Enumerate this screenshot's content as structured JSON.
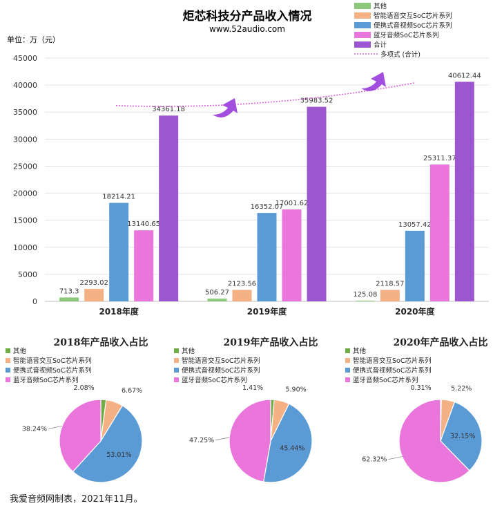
{
  "title": "炬芯科技分产品收入情况",
  "subtitle": "www.52audio.com",
  "unit_label": "单位：万（元）",
  "footer": "我爱音频网制表，2021年11月。",
  "colors": {
    "其他": "#8dc77a",
    "智能语音交互SoC芯片系列": "#f4b183",
    "便携式音视频SoC芯片系列": "#5b9bd5",
    "蓝牙音频SoC芯片系列": "#ea76dc",
    "合计": "#9c56cf",
    "trend": "#d966d9"
  },
  "chart_data": [
    {
      "type": "bar",
      "categories": [
        "2018年度",
        "2019年度",
        "2020年度"
      ],
      "series": [
        {
          "name": "其他",
          "values": [
            713.3,
            506.27,
            125.08
          ]
        },
        {
          "name": "智能语音交互SoC芯片系列",
          "values": [
            2293.02,
            2123.56,
            2118.57
          ]
        },
        {
          "name": "便携式音视频SoC芯片系列",
          "values": [
            18214.21,
            16352.07,
            13057.42
          ]
        },
        {
          "name": "蓝牙音频SoC芯片系列",
          "values": [
            13140.65,
            17001.62,
            25311.37
          ]
        },
        {
          "name": "合计",
          "values": [
            34361.18,
            35983.52,
            40612.44
          ]
        }
      ],
      "trendline": {
        "name": "多项式 (合计)",
        "of": "合计"
      },
      "value_labels": [
        [
          "713.3",
          "2293.02",
          "18214.21",
          "13140.65",
          "34361.18"
        ],
        [
          "506.27",
          "2123.56",
          "16352.07",
          "17001.62",
          "35983.52"
        ],
        [
          "125.08",
          "2118.57",
          "13057.42",
          "25311.37",
          "40612.44"
        ]
      ],
      "ylim": [
        0,
        45000
      ],
      "yticks": [
        "0",
        "5000",
        "10000",
        "15000",
        "20000",
        "25000",
        "30000",
        "35000",
        "40000",
        "45000"
      ],
      "grid": true,
      "legend": "top-right"
    },
    {
      "type": "pie",
      "title": "2018年产品收入占比",
      "labels": [
        "其他",
        "智能语音交互SoC芯片系列",
        "便携式音视频SoC芯片系列",
        "蓝牙音频SoC芯片系列"
      ],
      "values": [
        2.08,
        6.67,
        53.01,
        38.24
      ],
      "value_labels": [
        "2.08%",
        "6.67%",
        "53.01%",
        "38.24%"
      ],
      "legend": "top-left"
    },
    {
      "type": "pie",
      "title": "2019年产品收入占比",
      "labels": [
        "其他",
        "智能语音交互SoC芯片系列",
        "便携式音视频SoC芯片系列",
        "蓝牙音频SoC芯片系列"
      ],
      "values": [
        1.41,
        5.9,
        45.44,
        47.25
      ],
      "value_labels": [
        "1.41%",
        "5.90%",
        "45.44%",
        "47.25%"
      ],
      "legend": "top-left"
    },
    {
      "type": "pie",
      "title": "2020年产品收入占比",
      "labels": [
        "其他",
        "智能语音交互SoC芯片系列",
        "便携式音视频SoC芯片系列",
        "蓝牙音频SoC芯片系列"
      ],
      "values": [
        0.31,
        5.22,
        32.15,
        62.32
      ],
      "value_labels": [
        "0.31%",
        "5.22%",
        "32.15%",
        "62.32%"
      ],
      "legend": "top-left"
    }
  ]
}
